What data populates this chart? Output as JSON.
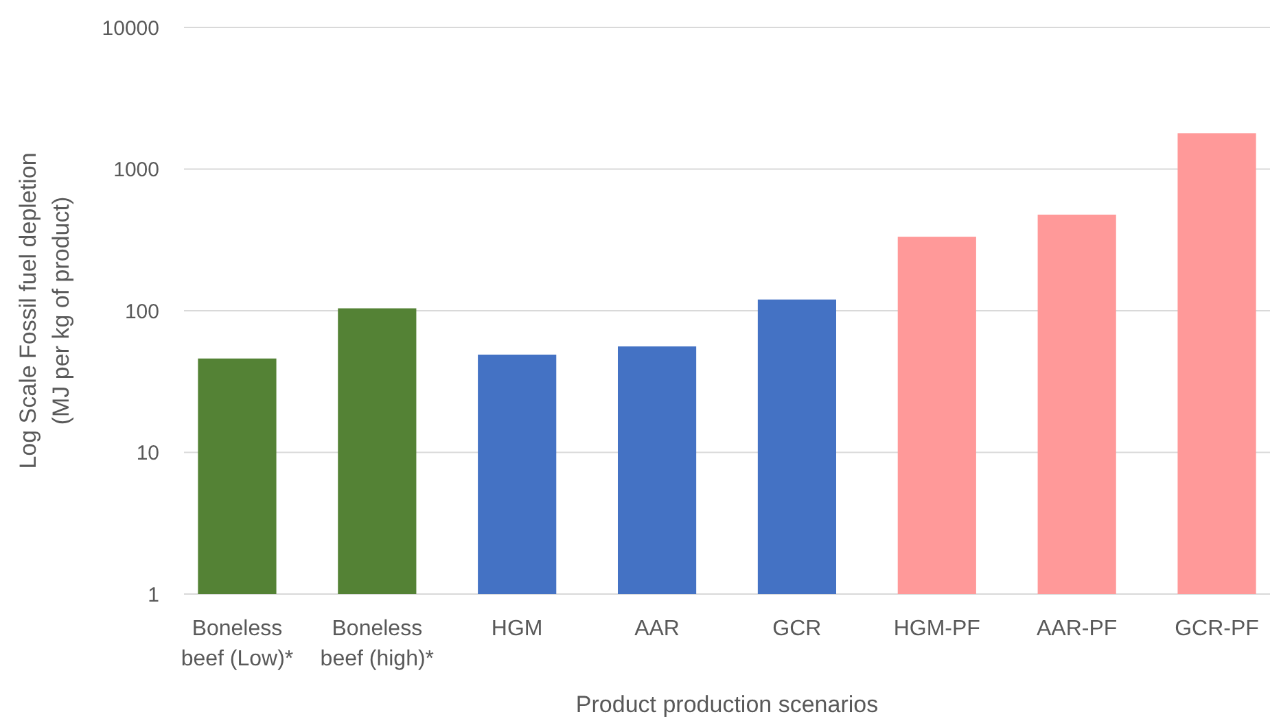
{
  "chart_data": {
    "type": "bar",
    "xlabel": "Product production scenarios",
    "ylabel": "Log Scale Fossil fuel depletion (MJ per kg of product)",
    "categories": [
      "Boneless beef (Low)*",
      "Boneless beef (high)*",
      "HGM",
      "AAR",
      "GCR",
      "HGM-PF",
      "AAR-PF",
      "GCR-PF"
    ],
    "values": [
      46,
      104,
      49,
      56,
      120,
      333,
      477,
      1790
    ],
    "colors": [
      "#548235",
      "#548235",
      "#4472c4",
      "#4472c4",
      "#4472c4",
      "#ff9999",
      "#ff9999",
      "#ff9999"
    ],
    "log": true,
    "ylim": [
      1,
      10000
    ],
    "yticks": [
      1,
      10,
      100,
      1000,
      10000
    ],
    "grid": "y"
  }
}
